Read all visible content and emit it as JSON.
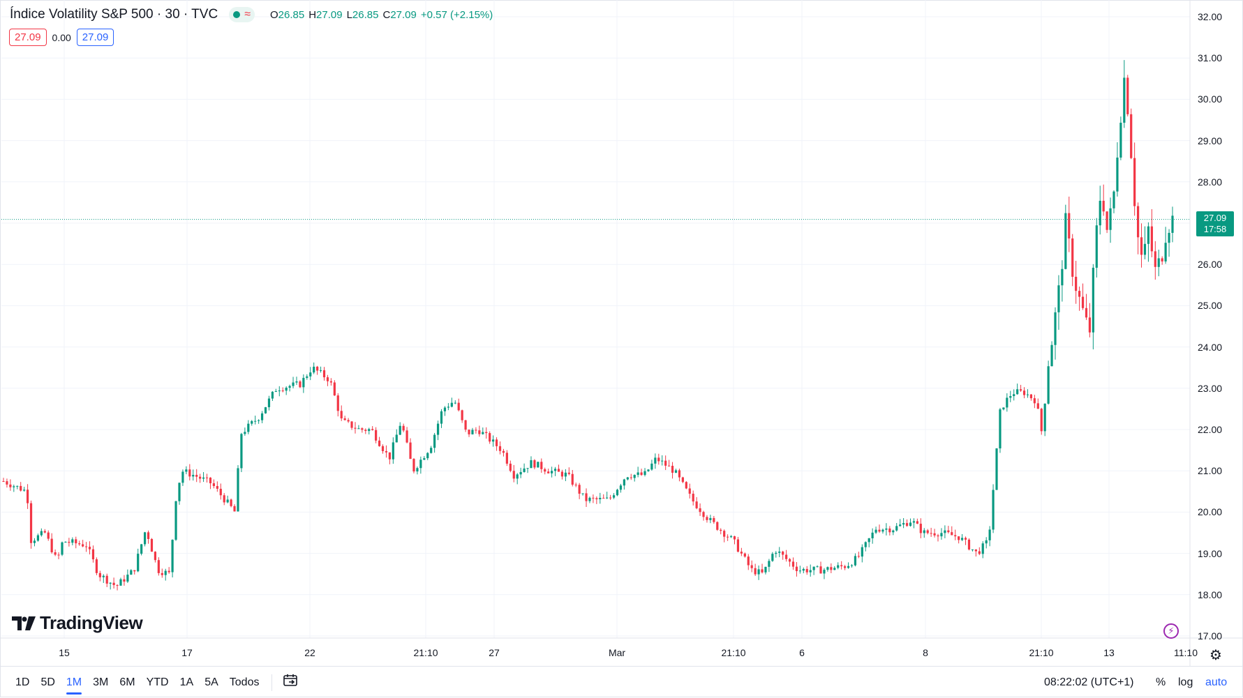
{
  "legend": {
    "title": "Índice Volatility S&P 500 · 30 · TVC",
    "wave_icon": "≈",
    "ohlc": [
      {
        "k": "O",
        "v": "26.85"
      },
      {
        "k": "H",
        "v": "27.09"
      },
      {
        "k": "L",
        "v": "26.85"
      },
      {
        "k": "C",
        "v": "27.09"
      },
      {
        "k": "",
        "v": "+0.57 (+2.15%)"
      }
    ]
  },
  "values_row": {
    "bid": "27.09",
    "spread": "0.00",
    "ask": "27.09"
  },
  "logo_text": "TradingView",
  "price_tag": {
    "price": "27.09",
    "countdown": "17:58"
  },
  "bottom_bar": {
    "ranges": [
      "1D",
      "5D",
      "1M",
      "3M",
      "6M",
      "YTD",
      "1A",
      "5A",
      "Todos"
    ],
    "active": "1M",
    "clock": "08:22:02 (UTC+1)",
    "percent": "%",
    "log": "log",
    "auto": "auto"
  },
  "colors": {
    "up": "#089981",
    "down": "#f23645",
    "accent": "#2962ff"
  },
  "icons": {
    "gear": "gear-icon",
    "calendar": "calendar-range-icon",
    "flash": "lightning-icon"
  },
  "chart_data": {
    "type": "candlestick",
    "title": "Índice Volatility S&P 500 · 30 · TVC",
    "y_ticks": [
      "32.00",
      "31.00",
      "30.00",
      "29.00",
      "28.00",
      "27.00",
      "26.00",
      "25.00",
      "24.00",
      "23.00",
      "22.00",
      "21.00",
      "20.00",
      "19.00",
      "18.00",
      "17.00"
    ],
    "ylim": [
      17,
      32
    ],
    "x_ticks": [
      "15",
      "17",
      "22",
      "21:10",
      "27",
      "Mar",
      "21:10",
      "6",
      "8",
      "21:10",
      "13",
      "11:10"
    ],
    "last_price": 27.09,
    "grid": true,
    "approx_price_path": [
      [
        0,
        20.75
      ],
      [
        0.02,
        20.5
      ],
      [
        0.022,
        19.3
      ],
      [
        0.035,
        19.5
      ],
      [
        0.045,
        18.8
      ],
      [
        0.05,
        19.3
      ],
      [
        0.07,
        19.2
      ],
      [
        0.08,
        18.5
      ],
      [
        0.095,
        18.2
      ],
      [
        0.11,
        18.6
      ],
      [
        0.12,
        19.6
      ],
      [
        0.13,
        18.6
      ],
      [
        0.14,
        18.5
      ],
      [
        0.145,
        20.3
      ],
      [
        0.15,
        21.0
      ],
      [
        0.16,
        20.9
      ],
      [
        0.175,
        20.7
      ],
      [
        0.195,
        20.0
      ],
      [
        0.2,
        21.9
      ],
      [
        0.215,
        22.3
      ],
      [
        0.23,
        23.0
      ],
      [
        0.25,
        23.1
      ],
      [
        0.26,
        23.5
      ],
      [
        0.275,
        23.2
      ],
      [
        0.285,
        22.2
      ],
      [
        0.3,
        22.0
      ],
      [
        0.31,
        22.0
      ],
      [
        0.325,
        21.3
      ],
      [
        0.335,
        22.2
      ],
      [
        0.345,
        21.0
      ],
      [
        0.36,
        21.6
      ],
      [
        0.37,
        22.5
      ],
      [
        0.38,
        22.7
      ],
      [
        0.39,
        21.9
      ],
      [
        0.4,
        22.0
      ],
      [
        0.42,
        21.5
      ],
      [
        0.43,
        20.9
      ],
      [
        0.445,
        21.2
      ],
      [
        0.46,
        21.0
      ],
      [
        0.475,
        20.9
      ],
      [
        0.49,
        20.3
      ],
      [
        0.51,
        20.3
      ],
      [
        0.525,
        20.9
      ],
      [
        0.54,
        20.9
      ],
      [
        0.55,
        21.3
      ],
      [
        0.565,
        21.0
      ],
      [
        0.58,
        20.3
      ],
      [
        0.595,
        19.8
      ],
      [
        0.615,
        19.3
      ],
      [
        0.63,
        18.6
      ],
      [
        0.64,
        18.5
      ],
      [
        0.65,
        19.1
      ],
      [
        0.67,
        18.6
      ],
      [
        0.69,
        18.6
      ],
      [
        0.71,
        18.7
      ],
      [
        0.72,
        18.9
      ],
      [
        0.735,
        19.6
      ],
      [
        0.75,
        19.6
      ],
      [
        0.765,
        19.8
      ],
      [
        0.775,
        19.5
      ],
      [
        0.79,
        19.5
      ],
      [
        0.805,
        19.4
      ],
      [
        0.82,
        19.0
      ],
      [
        0.83,
        19.3
      ],
      [
        0.84,
        22.5
      ],
      [
        0.85,
        22.9
      ],
      [
        0.86,
        22.9
      ],
      [
        0.87,
        22.7
      ],
      [
        0.875,
        21.9
      ],
      [
        0.88,
        23.5
      ],
      [
        0.885,
        24.5
      ],
      [
        0.89,
        25.5
      ],
      [
        0.895,
        27.0
      ],
      [
        0.9,
        26.0
      ],
      [
        0.905,
        25.3
      ],
      [
        0.91,
        24.8
      ],
      [
        0.915,
        24.3
      ],
      [
        0.92,
        26.5
      ],
      [
        0.925,
        27.9
      ],
      [
        0.93,
        26.8
      ],
      [
        0.935,
        27.5
      ],
      [
        0.94,
        29.3
      ],
      [
        0.945,
        30.7
      ],
      [
        0.95,
        28.8
      ],
      [
        0.955,
        26.8
      ],
      [
        0.96,
        26.0
      ],
      [
        0.965,
        26.9
      ],
      [
        0.97,
        25.8
      ],
      [
        0.975,
        26.1
      ],
      [
        0.98,
        26.9
      ],
      [
        0.985,
        27.09
      ]
    ]
  }
}
